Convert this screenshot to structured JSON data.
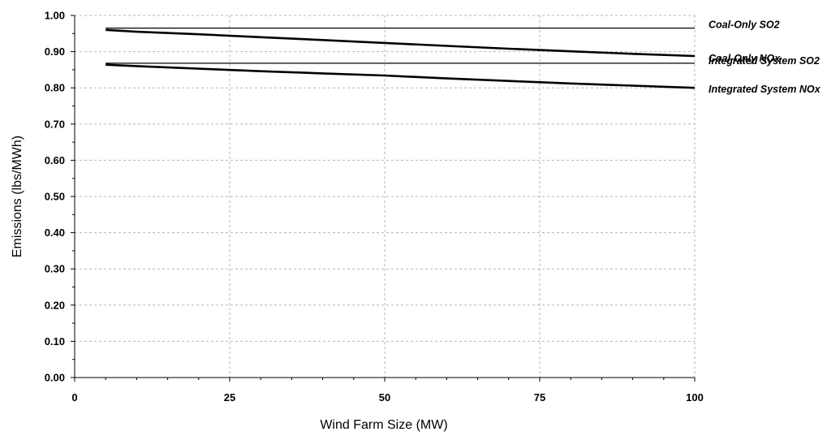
{
  "chart_data": {
    "type": "line",
    "xlabel": "Wind Farm Size (MW)",
    "ylabel": "Emissions (lbs/MWh)",
    "xlim": [
      0,
      100
    ],
    "ylim": [
      0,
      1.0
    ],
    "xticks": [
      0,
      25,
      50,
      75,
      100
    ],
    "yticks": [
      0.0,
      0.1,
      0.2,
      0.3,
      0.4,
      0.5,
      0.6,
      0.7,
      0.8,
      0.9,
      1.0
    ],
    "ytick_labels": [
      "0.00",
      "0.10",
      "0.20",
      "0.30",
      "0.40",
      "0.50",
      "0.60",
      "0.70",
      "0.80",
      "0.90",
      "1.00"
    ],
    "xtick_labels": [
      "0",
      "25",
      "50",
      "75",
      "100"
    ],
    "grid": true,
    "legend_placement": "right of each line end",
    "series": [
      {
        "name": "Coal-Only SO2",
        "x": [
          5,
          100
        ],
        "y": [
          0.965,
          0.965
        ],
        "color": "#000000",
        "weight": "thin"
      },
      {
        "name": "Integrated System SO2",
        "x": [
          5,
          10,
          20,
          30,
          40,
          50,
          60,
          70,
          80,
          90,
          100
        ],
        "y": [
          0.96,
          0.955,
          0.948,
          0.94,
          0.932,
          0.924,
          0.916,
          0.908,
          0.901,
          0.894,
          0.888
        ],
        "color": "#000000",
        "weight": "thick"
      },
      {
        "name": "Coal-Only NOx",
        "x": [
          5,
          100
        ],
        "y": [
          0.868,
          0.868
        ],
        "color": "#000000",
        "weight": "thin"
      },
      {
        "name": "Integrated System NOx",
        "x": [
          5,
          10,
          20,
          30,
          40,
          50,
          60,
          70,
          80,
          90,
          100
        ],
        "y": [
          0.864,
          0.86,
          0.853,
          0.846,
          0.84,
          0.834,
          0.826,
          0.819,
          0.812,
          0.806,
          0.8
        ],
        "color": "#000000",
        "weight": "thick"
      }
    ]
  }
}
